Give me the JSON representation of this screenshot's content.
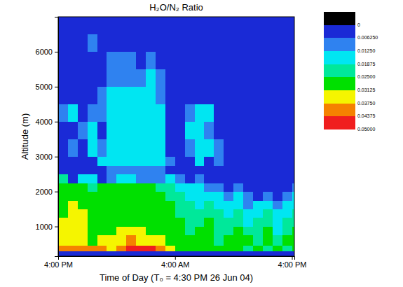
{
  "chart_data": {
    "type": "heatmap",
    "title": "H₂O/N₂ Ratio",
    "x_label": "Time of Day (T₀ = 4:30 PM 26 Jun 04)",
    "y_label": "Altitude (m)",
    "xlim": [
      16,
      40.25
    ],
    "ylim": [
      150,
      7000
    ],
    "xticks": [
      {
        "value": 16,
        "label": "4:00 PM"
      },
      {
        "value": 28,
        "label": "4:00 AM"
      },
      {
        "value": 40,
        "label": "4:00 PM"
      }
    ],
    "yticks": [
      1000,
      2000,
      3000,
      4000,
      5000,
      6000
    ],
    "x_bins": [
      16,
      17,
      18,
      19,
      20,
      21,
      22,
      23,
      24,
      25,
      26,
      27,
      28,
      29,
      30,
      31,
      32,
      33,
      34,
      35,
      36,
      37,
      38,
      39,
      40,
      40.25
    ],
    "y_bins": [
      150,
      300,
      450,
      750,
      1000,
      1250,
      1500,
      1750,
      2000,
      2250,
      2500,
      2750,
      3000,
      3500,
      4000,
      4500,
      5000,
      5500,
      6000,
      6500,
      7000
    ],
    "cells": [
      [
        0.003,
        0.003,
        0.003,
        0.003,
        0.003,
        0.003,
        0.003,
        0.003,
        0.003,
        0.003,
        0.003,
        0.003,
        0.003,
        0.003,
        0.003,
        0.003,
        0.003,
        0.003,
        0.003,
        0.003,
        0.003,
        0.003,
        0.003,
        0.003,
        0.003
      ],
      [
        0.04,
        0.04,
        0.04,
        0.04,
        0.04,
        0.034,
        0.04,
        0.046,
        0.046,
        0.046,
        0.04,
        0.034,
        0.028,
        0.028,
        0.028,
        0.028,
        0.028,
        0.028,
        0.028,
        0.022,
        0.028,
        0.022,
        0.028,
        0.022,
        0.028
      ],
      [
        0.034,
        0.034,
        0.034,
        0.028,
        0.034,
        0.034,
        0.034,
        0.04,
        0.034,
        0.034,
        0.034,
        0.028,
        0.028,
        0.028,
        0.028,
        0.028,
        0.022,
        0.028,
        0.028,
        0.028,
        0.022,
        0.028,
        0.022,
        0.028,
        0.028
      ],
      [
        0.034,
        0.034,
        0.034,
        0.028,
        0.028,
        0.028,
        0.034,
        0.034,
        0.034,
        0.028,
        0.028,
        0.028,
        0.028,
        0.022,
        0.028,
        0.028,
        0.022,
        0.022,
        0.028,
        0.022,
        0.022,
        0.028,
        0.015,
        0.022,
        0.028
      ],
      [
        0.034,
        0.034,
        0.034,
        0.028,
        0.028,
        0.028,
        0.028,
        0.028,
        0.028,
        0.028,
        0.028,
        0.028,
        0.028,
        0.022,
        0.022,
        0.028,
        0.022,
        0.022,
        0.022,
        0.015,
        0.022,
        0.022,
        0.015,
        0.022,
        0.022
      ],
      [
        0.028,
        0.034,
        0.034,
        0.028,
        0.028,
        0.028,
        0.028,
        0.028,
        0.028,
        0.028,
        0.028,
        0.028,
        0.022,
        0.022,
        0.022,
        0.022,
        0.022,
        0.015,
        0.022,
        0.015,
        0.015,
        0.022,
        0.015,
        0.015,
        0.022
      ],
      [
        0.028,
        0.034,
        0.028,
        0.028,
        0.028,
        0.028,
        0.028,
        0.028,
        0.028,
        0.028,
        0.028,
        0.028,
        0.022,
        0.022,
        0.015,
        0.022,
        0.015,
        0.015,
        0.015,
        0.009,
        0.015,
        0.015,
        0.009,
        0.015,
        0.015
      ],
      [
        0.028,
        0.028,
        0.028,
        0.028,
        0.028,
        0.028,
        0.028,
        0.028,
        0.028,
        0.028,
        0.028,
        0.022,
        0.022,
        0.015,
        0.015,
        0.015,
        0.015,
        0.009,
        0.015,
        0.009,
        0.003,
        0.009,
        0.003,
        0.009,
        0.015
      ],
      [
        0.028,
        0.028,
        0.028,
        0.022,
        0.028,
        0.028,
        0.028,
        0.028,
        0.028,
        0.028,
        0.022,
        0.022,
        0.015,
        0.015,
        0.015,
        0.009,
        0.009,
        0.003,
        0.009,
        0.003,
        0.003,
        0.003,
        0.003,
        0.003,
        0.009
      ],
      [
        0.022,
        0.003,
        0.015,
        0.015,
        0.003,
        0.009,
        0.015,
        0.015,
        0.009,
        0.009,
        0.009,
        0.015,
        0.009,
        0.003,
        0.009,
        0.003,
        0.003,
        0.003,
        0.003,
        0.003,
        0.003,
        0.003,
        0.003,
        0.003,
        0.003
      ],
      [
        0.003,
        0.003,
        0.003,
        0.003,
        0.003,
        0.009,
        0.009,
        0.009,
        0.009,
        0.009,
        0.009,
        0.003,
        0.003,
        0.003,
        0.003,
        0.003,
        0.003,
        0.003,
        0.003,
        0.003,
        0.003,
        0.003,
        0.003,
        0.003,
        0.003
      ],
      [
        0.003,
        0.003,
        0.003,
        0.003,
        0.015,
        0.015,
        0.015,
        0.015,
        0.015,
        0.015,
        0.015,
        0.009,
        0.003,
        0.003,
        0.015,
        0.003,
        0.009,
        0.003,
        0.003,
        0.003,
        0.003,
        0.003,
        0.003,
        0.003,
        0.003
      ],
      [
        0.003,
        0.009,
        0.003,
        0.015,
        0.009,
        0.015,
        0.015,
        0.015,
        0.015,
        0.015,
        0.015,
        0.003,
        0.003,
        0.009,
        0.015,
        0.015,
        0.009,
        0.003,
        0.003,
        0.003,
        0.003,
        0.003,
        0.003,
        0.003,
        0.003
      ],
      [
        0.003,
        0.003,
        0.009,
        0.015,
        0.003,
        0.015,
        0.015,
        0.015,
        0.015,
        0.015,
        0.015,
        0.003,
        0.003,
        0.015,
        0.015,
        0.009,
        0.003,
        0.003,
        0.003,
        0.003,
        0.003,
        0.003,
        0.003,
        0.003,
        0.003
      ],
      [
        0.009,
        0.015,
        0.003,
        0.009,
        0.009,
        0.015,
        0.015,
        0.015,
        0.015,
        0.015,
        0.015,
        0.003,
        0.003,
        0.009,
        0.015,
        0.015,
        0.003,
        0.003,
        0.003,
        0.003,
        0.003,
        0.003,
        0.003,
        0.003,
        0.003
      ],
      [
        0.003,
        0.003,
        0.003,
        0.003,
        0.009,
        0.015,
        0.015,
        0.015,
        0.015,
        0.015,
        0.009,
        0.003,
        0.003,
        0.003,
        0.003,
        0.003,
        0.003,
        0.003,
        0.003,
        0.003,
        0.003,
        0.003,
        0.003,
        0.003,
        0.003
      ],
      [
        0.003,
        0.003,
        0.003,
        0.003,
        0.003,
        0.009,
        0.009,
        0.009,
        0.009,
        0.015,
        0.009,
        0.003,
        0.003,
        0.003,
        0.003,
        0.003,
        0.003,
        0.003,
        0.003,
        0.003,
        0.003,
        0.003,
        0.003,
        0.003,
        0.003
      ],
      [
        0.003,
        0.003,
        0.003,
        0.003,
        0.003,
        0.009,
        0.009,
        0.009,
        0.003,
        0.009,
        0.003,
        0.003,
        0.003,
        0.003,
        0.003,
        0.003,
        0.003,
        0.003,
        0.003,
        0.003,
        0.003,
        0.003,
        0.003,
        0.003,
        0.003
      ],
      [
        0.003,
        0.003,
        0.003,
        0.009,
        0.003,
        0.003,
        0.003,
        0.003,
        0.003,
        0.003,
        0.003,
        0.003,
        0.003,
        0.003,
        0.003,
        0.003,
        0.003,
        0.003,
        0.003,
        0.003,
        0.003,
        0.003,
        0.003,
        0.003,
        0.003
      ],
      [
        0.003,
        0.003,
        0.003,
        0.003,
        0.003,
        0.003,
        0.003,
        0.003,
        0.003,
        0.003,
        0.003,
        0.003,
        0.003,
        0.003,
        0.003,
        0.003,
        0.003,
        0.003,
        0.003,
        0.003,
        0.003,
        0.003,
        0.003,
        0.003,
        0.003
      ]
    ],
    "colorbar": {
      "range": [
        -0.00625,
        0.05
      ],
      "ticks": [
        0,
        {
          "value": 0.00625,
          "label": "0.006250"
        },
        {
          "value": 0.0125,
          "label": "0.01250"
        },
        {
          "value": 0.01875,
          "label": "0.01875"
        },
        {
          "value": 0.025,
          "label": "0.02500"
        },
        {
          "value": 0.03125,
          "label": "0.03125"
        },
        {
          "value": 0.0375,
          "label": "0.03750"
        },
        {
          "value": 0.04375,
          "label": "0.04375"
        },
        {
          "value": 0.05,
          "label": "0.05000"
        }
      ],
      "colors": [
        "#000000",
        "#1a2ad6",
        "#2f82f0",
        "#00e6f2",
        "#00e89a",
        "#00e000",
        "#f5f500",
        "#f58200",
        "#f01e1e"
      ]
    }
  }
}
